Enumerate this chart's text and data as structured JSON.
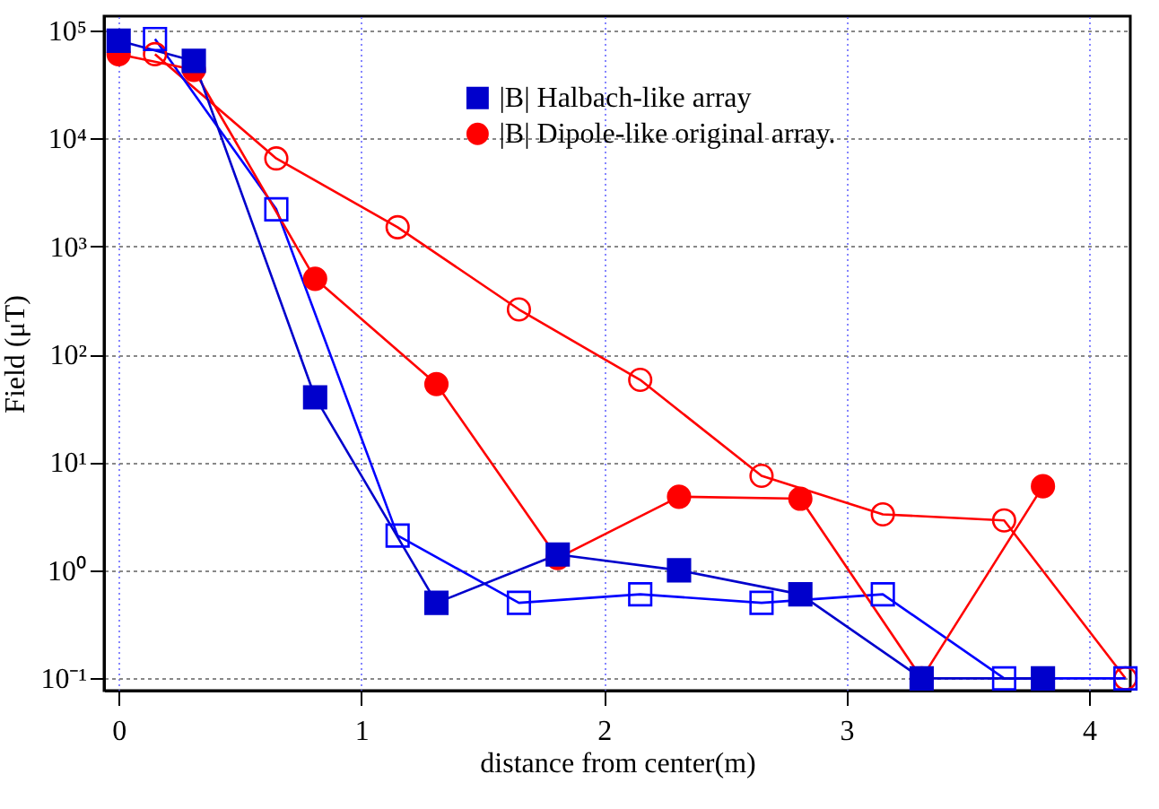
{
  "chart_data": {
    "type": "line",
    "xlabel": "distance from center(m)",
    "ylabel": "Field (μT)",
    "xlim": [
      -0.06,
      4.17
    ],
    "xticks": [
      0,
      1,
      2,
      3,
      4
    ],
    "ylim": [
      0.077,
      135000
    ],
    "log": "y",
    "yticks": [
      {
        "value": 0.1,
        "label": "10⁻¹"
      },
      {
        "value": 1,
        "label": "10⁰"
      },
      {
        "value": 10,
        "label": "10¹"
      },
      {
        "value": 100,
        "label": "10²"
      },
      {
        "value": 1000,
        "label": "10³"
      },
      {
        "value": 10000,
        "label": "10⁴"
      },
      {
        "value": 100000,
        "label": "10⁵"
      }
    ],
    "grid": true,
    "legend": "top",
    "line_style": "solid",
    "series": [
      {
        "name": "|B| Halbach-like array",
        "color": "#0000cc",
        "marker": "square",
        "x": [
          0,
          0.31,
          0.81,
          1.31,
          1.81,
          2.31,
          2.81,
          3.31,
          3.81
        ],
        "values": [
          80000,
          52000,
          40,
          0.5,
          1.4,
          1.0,
          0.6,
          0.1,
          0.1
        ]
      },
      {
        "name": "|B| Dipole-like original array.",
        "color": "#ff0000",
        "marker": "circle",
        "x": [
          0,
          0.31,
          0.81,
          1.31,
          1.81,
          2.31,
          2.81,
          3.31,
          3.81
        ],
        "values": [
          60000,
          43000,
          500,
          53,
          1.3,
          4.8,
          4.6,
          0.1,
          6
        ]
      },
      {
        "color": "#0000ff",
        "marker": "square",
        "x": [
          0.15,
          0.65,
          1.15,
          1.65,
          2.15,
          2.65,
          3.15,
          3.65,
          4.15
        ],
        "values": [
          83000,
          2200,
          2.1,
          0.5,
          0.6,
          0.5,
          0.6,
          0.1,
          0.1
        ]
      },
      {
        "color": "#ff0000",
        "marker": "circle",
        "x": [
          0.15,
          0.65,
          1.15,
          1.65,
          2.15,
          2.65,
          3.15,
          3.65,
          4.15
        ],
        "values": [
          60000,
          6500,
          1500,
          260,
          58,
          7.5,
          3.3,
          2.9,
          0.1
        ]
      }
    ]
  }
}
